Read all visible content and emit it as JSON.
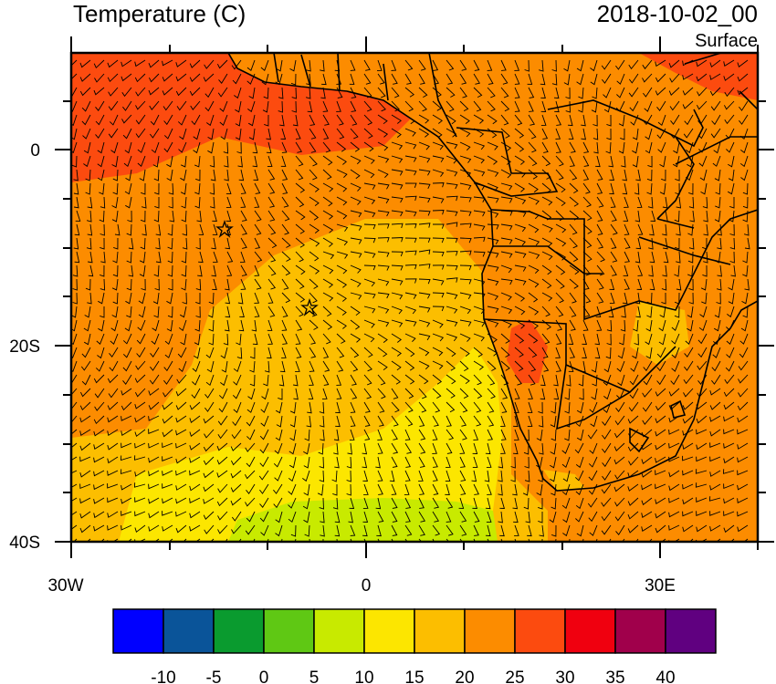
{
  "header": {
    "title": "Temperature (C)",
    "datetime": "2018-10-02_00",
    "level": "Surface"
  },
  "axes": {
    "x_ticks": [
      "30W",
      "0",
      "30E"
    ],
    "y_ticks": [
      "0",
      "20S",
      "40S"
    ]
  },
  "colorbar": {
    "labels": [
      "-10",
      "-5",
      "0",
      "5",
      "10",
      "15",
      "20",
      "25",
      "30",
      "35",
      "40"
    ],
    "colors": [
      "#0000ff",
      "#0a5499",
      "#0a9b2f",
      "#5fc814",
      "#c8ea00",
      "#fce600",
      "#fcbe00",
      "#fc8c00",
      "#fc4b0f",
      "#f0000f",
      "#a0004b",
      "#600080"
    ]
  },
  "map": {
    "land_color": "#fc8c00",
    "ocean_warm": "#fc4b0f",
    "ocean_mid": "#fc8c00",
    "ocean_cool": "#fcbe00",
    "ocean_cold": "#fce600",
    "ocean_coldest": "#c8ea00",
    "markers": [
      "star",
      "star"
    ]
  }
}
